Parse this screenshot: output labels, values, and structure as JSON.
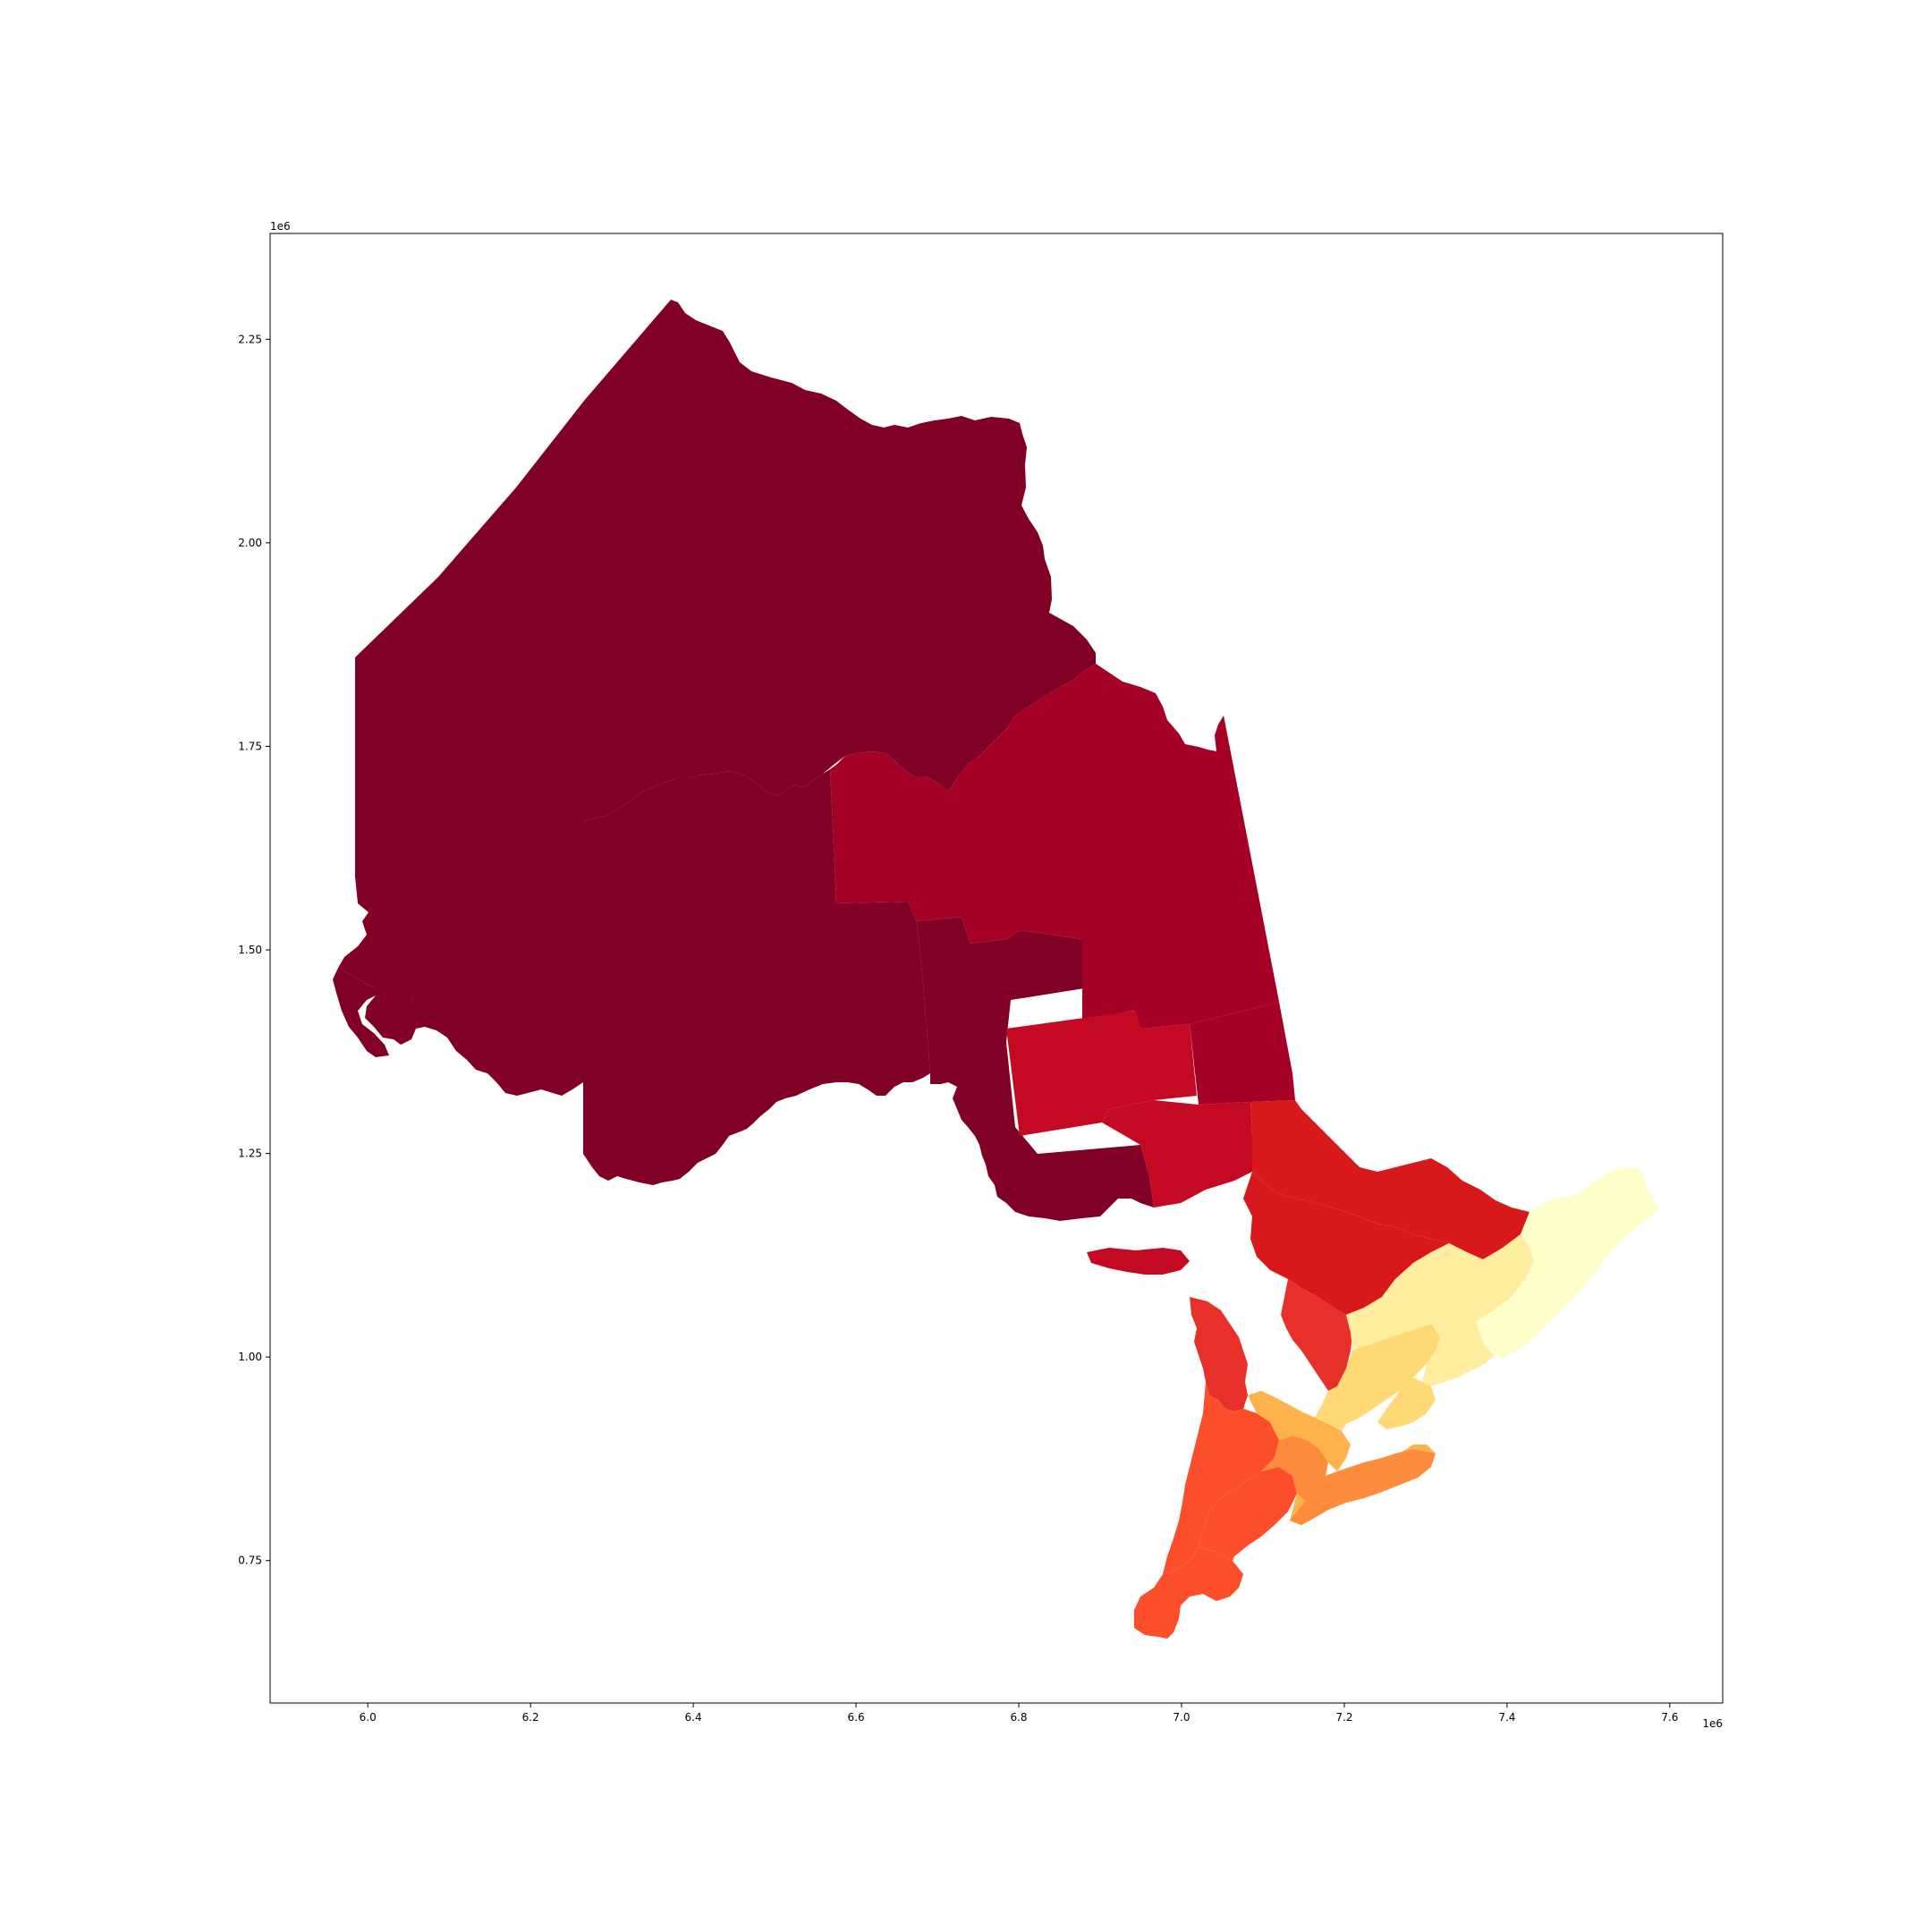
{
  "chart_data": {
    "type": "choropleth",
    "xlim": [
      5880000,
      7665000
    ],
    "ylim": [
      575000,
      2380000
    ],
    "x_ticks": {
      "values": [
        6000000,
        6200000,
        6400000,
        6600000,
        6800000,
        7000000,
        7200000,
        7400000,
        7600000
      ],
      "labels": [
        "6.0",
        "6.2",
        "6.4",
        "6.6",
        "6.8",
        "7.0",
        "7.2",
        "7.4",
        "7.6"
      ]
    },
    "y_ticks": {
      "values": [
        750000,
        1000000,
        1250000,
        1500000,
        1750000,
        2000000,
        2250000
      ],
      "labels": [
        "0.75",
        "1.00",
        "1.25",
        "1.50",
        "1.75",
        "2.00",
        "2.25"
      ]
    },
    "x_offset_label": "1e6",
    "y_offset_label": "1e6",
    "colormap": "YlOrRd",
    "grid": false,
    "legend": "none",
    "palette": {
      "darkest": "#800026",
      "dark": "#a50026",
      "red": "#c40a22",
      "red_orange": "#d7191c",
      "orange_red": "#e8302a",
      "orange": "#fc4e2a",
      "light_orange": "#fd8d3c",
      "amber": "#feb24c",
      "yellow": "#fed976",
      "pale_yellow": "#ffeda0",
      "lightest": "#ffffcc"
    }
  }
}
